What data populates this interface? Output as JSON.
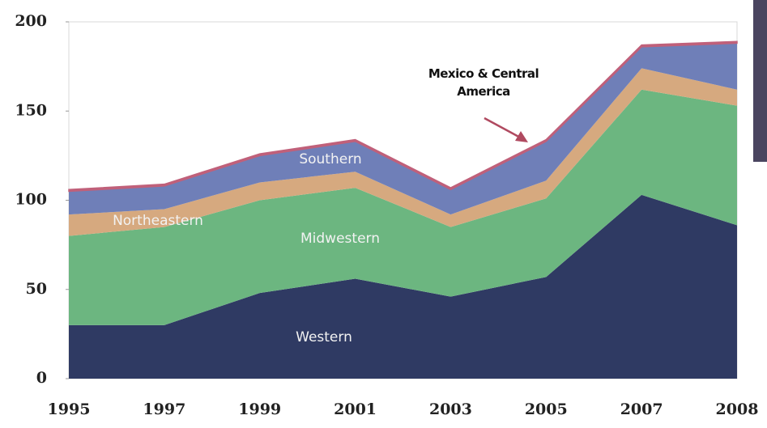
{
  "chart_data": {
    "type": "stacked-area",
    "categories": [
      "1995",
      "1997",
      "1999",
      "2001",
      "2003",
      "2005",
      "2007",
      "2008"
    ],
    "series": [
      {
        "name": "Western",
        "color": "#2f3a63",
        "values": [
          30,
          30,
          48,
          56,
          46,
          57,
          103,
          86
        ]
      },
      {
        "name": "Midwestern",
        "color": "#6cb680",
        "values": [
          50,
          55,
          52,
          51,
          39,
          44,
          59,
          67
        ]
      },
      {
        "name": "Northeastern",
        "color": "#d6a97f",
        "values": [
          12,
          10,
          10,
          9,
          7,
          10,
          12,
          9
        ]
      },
      {
        "name": "Southern",
        "color": "#6f7fb8",
        "values": [
          13,
          13,
          15,
          17,
          14,
          22,
          12,
          26
        ]
      },
      {
        "name": "Mexico & Central America",
        "color": "#c0607a",
        "values": [
          1,
          1,
          1,
          1,
          1,
          1,
          1,
          1
        ]
      }
    ],
    "ylim": [
      0,
      200
    ],
    "yticks": [
      0,
      50,
      100,
      150,
      200
    ],
    "grid": false
  }
}
